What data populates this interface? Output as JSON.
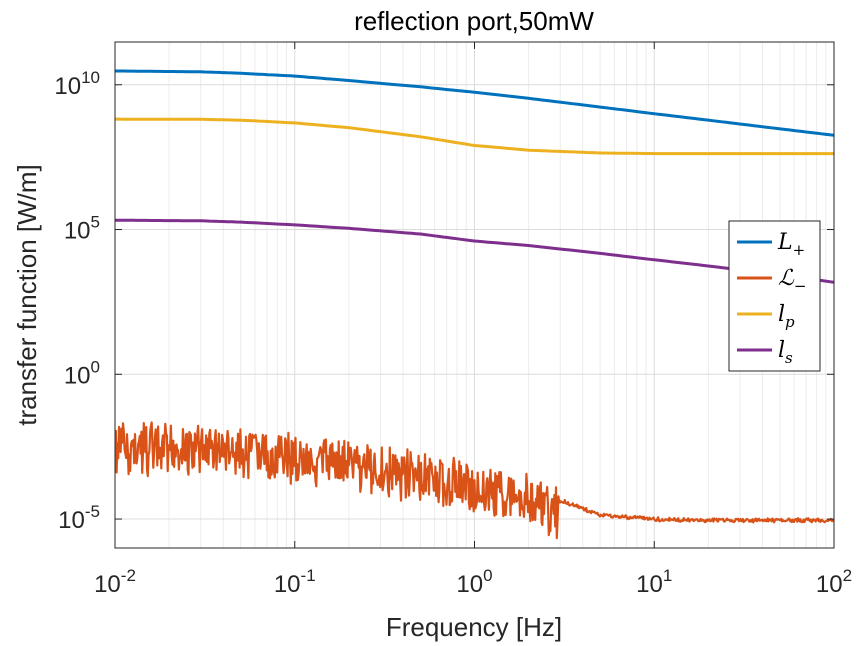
{
  "chart_data": {
    "type": "line",
    "title": "reflection port,50mW",
    "xlabel": "Frequency [Hz]",
    "ylabel": "transfer function [W/m]",
    "xscale": "log",
    "yscale": "log",
    "xlim": [
      0.01,
      100
    ],
    "ylim": [
      1e-06,
      300000000000.0
    ],
    "x_ticks": [
      {
        "value": 0.01,
        "base": "10",
        "exp": "-2"
      },
      {
        "value": 0.1,
        "base": "10",
        "exp": "-1"
      },
      {
        "value": 1,
        "base": "10",
        "exp": "0"
      },
      {
        "value": 10,
        "base": "10",
        "exp": "1"
      },
      {
        "value": 100,
        "base": "10",
        "exp": "2"
      }
    ],
    "y_ticks": [
      {
        "value": 1e-05,
        "base": "10",
        "exp": "-5"
      },
      {
        "value": 1,
        "base": "10",
        "exp": "0"
      },
      {
        "value": 100000,
        "base": "10",
        "exp": "5"
      },
      {
        "value": 10000000000,
        "base": "10",
        "exp": "10"
      }
    ],
    "grid": true,
    "legend_position": "right",
    "series": [
      {
        "name": "L+",
        "label_main": "L",
        "label_sub": "+",
        "color": "#0072BD",
        "x": [
          0.01,
          0.03,
          0.05,
          0.1,
          0.2,
          0.5,
          1,
          2,
          5,
          10,
          20,
          50,
          100
        ],
        "y": [
          30000000000,
          28000000000,
          25000000000,
          20000000000,
          14000000000,
          8500000000,
          5500000000,
          3400000000,
          1700000000,
          1000000000,
          600000000,
          300000000,
          180000000
        ]
      },
      {
        "name": "L-",
        "label_main": "ℒ",
        "label_sub": "−",
        "color": "#D95319",
        "x": [
          0.01,
          0.02,
          0.05,
          0.1,
          0.2,
          0.5,
          1,
          2,
          3,
          5,
          10,
          20,
          50,
          100
        ],
        "y": [
          0.01,
          0.01,
          0.008,
          0.005,
          0.003,
          0.001,
          0.0005,
          0.0002,
          5e-05,
          1.5e-05,
          1.1e-05,
          1e-05,
          1e-05,
          1e-05
        ]
      },
      {
        "name": "lp",
        "label_main": "l",
        "label_sub": "p",
        "color": "#EDB120",
        "x": [
          0.01,
          0.03,
          0.05,
          0.1,
          0.2,
          0.5,
          1,
          2,
          5,
          10,
          20,
          50,
          100
        ],
        "y": [
          650000000,
          640000000,
          600000000,
          480000000,
          330000000,
          160000000,
          80000000,
          55000000,
          44000000,
          42000000,
          42000000,
          42000000,
          42000000
        ]
      },
      {
        "name": "ls",
        "label_main": "l",
        "label_sub": "s",
        "color": "#7E2F8E",
        "x": [
          0.01,
          0.03,
          0.05,
          0.1,
          0.2,
          0.5,
          1,
          2,
          5,
          10,
          20,
          50,
          100
        ],
        "y": [
          210000,
          200000,
          180000,
          145000,
          110000,
          70000,
          40000,
          28000,
          15000,
          9000,
          5500,
          2800,
          1500
        ]
      }
    ]
  }
}
